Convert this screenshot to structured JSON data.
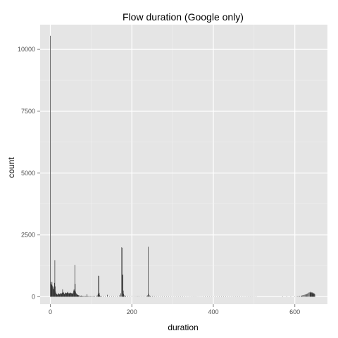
{
  "chart_data": {
    "type": "histogram",
    "title": "Flow duration (Google only)",
    "xlabel": "duration",
    "ylabel": "count",
    "xlim": [
      -25,
      680
    ],
    "ylim": [
      -300,
      11000
    ],
    "x_ticks": [
      0,
      200,
      400,
      600
    ],
    "y_ticks": [
      0,
      2500,
      5000,
      7500,
      10000
    ],
    "x_tick_labels": [
      "0",
      "200",
      "400",
      "600"
    ],
    "y_tick_labels": [
      "0",
      "2500",
      "5000",
      "7500",
      "10000"
    ],
    "grid": true,
    "panel_color": "#e5e5e5",
    "grid_color": "#ffffff",
    "bar_color": "#333333",
    "bin_width": 1,
    "bins": [
      [
        0,
        10550
      ],
      [
        1,
        600
      ],
      [
        2,
        520
      ],
      [
        3,
        480
      ],
      [
        4,
        600
      ],
      [
        5,
        450
      ],
      [
        6,
        380
      ],
      [
        7,
        330
      ],
      [
        8,
        300
      ],
      [
        9,
        420
      ],
      [
        10,
        560
      ],
      [
        11,
        1480
      ],
      [
        12,
        420
      ],
      [
        13,
        210
      ],
      [
        14,
        150
      ],
      [
        15,
        120
      ],
      [
        16,
        100
      ],
      [
        17,
        90
      ],
      [
        18,
        80
      ],
      [
        19,
        120
      ],
      [
        20,
        140
      ],
      [
        21,
        130
      ],
      [
        22,
        110
      ],
      [
        23,
        100
      ],
      [
        24,
        120
      ],
      [
        25,
        150
      ],
      [
        26,
        130
      ],
      [
        27,
        110
      ],
      [
        28,
        140
      ],
      [
        29,
        160
      ],
      [
        30,
        300
      ],
      [
        31,
        200
      ],
      [
        32,
        180
      ],
      [
        33,
        150
      ],
      [
        34,
        120
      ],
      [
        35,
        110
      ],
      [
        36,
        140
      ],
      [
        37,
        160
      ],
      [
        38,
        170
      ],
      [
        39,
        150
      ],
      [
        40,
        140
      ],
      [
        41,
        160
      ],
      [
        42,
        180
      ],
      [
        43,
        200
      ],
      [
        44,
        150
      ],
      [
        45,
        140
      ],
      [
        46,
        130
      ],
      [
        47,
        150
      ],
      [
        48,
        170
      ],
      [
        49,
        140
      ],
      [
        50,
        160
      ],
      [
        51,
        150
      ],
      [
        52,
        140
      ],
      [
        53,
        130
      ],
      [
        54,
        120
      ],
      [
        55,
        150
      ],
      [
        56,
        170
      ],
      [
        57,
        250
      ],
      [
        58,
        300
      ],
      [
        59,
        250
      ],
      [
        60,
        1290
      ],
      [
        61,
        520
      ],
      [
        62,
        210
      ],
      [
        63,
        150
      ],
      [
        64,
        120
      ],
      [
        65,
        100
      ],
      [
        66,
        90
      ],
      [
        67,
        80
      ],
      [
        68,
        70
      ],
      [
        69,
        60
      ],
      [
        70,
        60
      ],
      [
        72,
        50
      ],
      [
        74,
        40
      ],
      [
        76,
        50
      ],
      [
        78,
        40
      ],
      [
        80,
        35
      ],
      [
        82,
        30
      ],
      [
        84,
        30
      ],
      [
        86,
        30
      ],
      [
        88,
        25
      ],
      [
        90,
        100
      ],
      [
        92,
        30
      ],
      [
        94,
        25
      ],
      [
        96,
        20
      ],
      [
        98,
        25
      ],
      [
        100,
        20
      ],
      [
        103,
        20
      ],
      [
        106,
        30
      ],
      [
        109,
        25
      ],
      [
        112,
        30
      ],
      [
        115,
        60
      ],
      [
        117,
        120
      ],
      [
        118,
        850
      ],
      [
        119,
        840
      ],
      [
        120,
        160
      ],
      [
        121,
        80
      ],
      [
        123,
        40
      ],
      [
        126,
        30
      ],
      [
        130,
        25
      ],
      [
        135,
        20
      ],
      [
        140,
        80
      ],
      [
        145,
        20
      ],
      [
        150,
        20
      ],
      [
        155,
        25
      ],
      [
        160,
        20
      ],
      [
        165,
        30
      ],
      [
        170,
        60
      ],
      [
        173,
        140
      ],
      [
        175,
        2000
      ],
      [
        176,
        1980
      ],
      [
        177,
        880
      ],
      [
        178,
        900
      ],
      [
        179,
        250
      ],
      [
        180,
        120
      ],
      [
        182,
        60
      ],
      [
        185,
        40
      ],
      [
        190,
        30
      ],
      [
        195,
        25
      ],
      [
        200,
        25
      ],
      [
        205,
        20
      ],
      [
        210,
        20
      ],
      [
        215,
        25
      ],
      [
        220,
        20
      ],
      [
        225,
        25
      ],
      [
        230,
        30
      ],
      [
        235,
        40
      ],
      [
        238,
        60
      ],
      [
        240,
        2020
      ],
      [
        241,
        120
      ],
      [
        243,
        60
      ],
      [
        245,
        40
      ],
      [
        250,
        30
      ],
      [
        255,
        25
      ],
      [
        260,
        20
      ],
      [
        265,
        20
      ],
      [
        270,
        15
      ],
      [
        275,
        15
      ],
      [
        280,
        15
      ],
      [
        285,
        12
      ],
      [
        290,
        12
      ],
      [
        295,
        12
      ],
      [
        300,
        12
      ],
      [
        305,
        10
      ],
      [
        310,
        10
      ],
      [
        315,
        10
      ],
      [
        320,
        10
      ],
      [
        325,
        10
      ],
      [
        330,
        10
      ],
      [
        335,
        8
      ],
      [
        340,
        8
      ],
      [
        345,
        8
      ],
      [
        350,
        8
      ],
      [
        355,
        8
      ],
      [
        360,
        8
      ],
      [
        365,
        8
      ],
      [
        370,
        8
      ],
      [
        375,
        6
      ],
      [
        380,
        6
      ],
      [
        385,
        6
      ],
      [
        390,
        6
      ],
      [
        395,
        6
      ],
      [
        400,
        6
      ],
      [
        405,
        6
      ],
      [
        410,
        6
      ],
      [
        415,
        6
      ],
      [
        420,
        5
      ],
      [
        425,
        5
      ],
      [
        430,
        5
      ],
      [
        435,
        5
      ],
      [
        440,
        5
      ],
      [
        445,
        5
      ],
      [
        450,
        5
      ],
      [
        455,
        5
      ],
      [
        460,
        5
      ],
      [
        465,
        5
      ],
      [
        470,
        5
      ],
      [
        475,
        5
      ],
      [
        480,
        5
      ],
      [
        485,
        5
      ],
      [
        490,
        5
      ],
      [
        495,
        5
      ],
      [
        500,
        5
      ],
      [
        505,
        5
      ],
      [
        570,
        5
      ],
      [
        580,
        5
      ],
      [
        590,
        5
      ],
      [
        600,
        10
      ],
      [
        603,
        10
      ],
      [
        606,
        20
      ],
      [
        609,
        25
      ],
      [
        612,
        30
      ],
      [
        615,
        40
      ],
      [
        617,
        50
      ],
      [
        619,
        60
      ],
      [
        621,
        70
      ],
      [
        623,
        80
      ],
      [
        625,
        90
      ],
      [
        627,
        100
      ],
      [
        629,
        110
      ],
      [
        631,
        130
      ],
      [
        633,
        150
      ],
      [
        635,
        180
      ],
      [
        637,
        170
      ],
      [
        638,
        200
      ],
      [
        639,
        150
      ],
      [
        640,
        190
      ],
      [
        641,
        160
      ],
      [
        642,
        180
      ],
      [
        643,
        140
      ],
      [
        644,
        170
      ],
      [
        645,
        150
      ],
      [
        646,
        130
      ],
      [
        647,
        140
      ],
      [
        648,
        120
      ],
      [
        649,
        100
      ]
    ]
  }
}
